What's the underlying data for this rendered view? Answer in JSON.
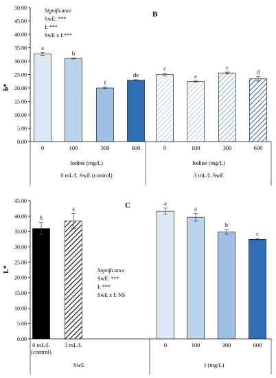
{
  "charts": [
    {
      "type": "bar",
      "panel": "B",
      "ylabel": "b*",
      "ylim": [
        0,
        50
      ],
      "yticks": [
        "0.00",
        "5.00",
        "10.00",
        "15.00",
        "20.00",
        "25.00",
        "30.00",
        "35.00",
        "40.00",
        "45.00",
        "50.00"
      ],
      "significance": {
        "title": "Significance",
        "lines": [
          "SwE: ***",
          "I: ***",
          "SwE x I:***"
        ]
      },
      "categories": [
        "0",
        "100",
        "300",
        "600",
        "0",
        "100",
        "300",
        "600"
      ],
      "values": [
        32.7,
        31.0,
        20.0,
        22.9,
        25.0,
        22.4,
        25.6,
        23.4
      ],
      "errors": [
        0.5,
        0.2,
        0.3,
        0.2,
        0.5,
        0.2,
        0.3,
        0.8
      ],
      "letters": [
        "a",
        "b",
        "f",
        "de",
        "c",
        "e",
        "c",
        "d"
      ],
      "fills": [
        "#dce8f6",
        "#bcd3ee",
        "#9fc0e6",
        "#2f6db5",
        "hatch-light",
        "hatch-light",
        "hatch-mid",
        "hatch-dark"
      ],
      "groups": [
        {
          "sub": "Iodine (mg/L)",
          "label": "0 mL/L SwE (control)"
        },
        {
          "sub": "Iodine (mg/L)",
          "label": "3 mL/L SwE"
        }
      ]
    },
    {
      "type": "bar",
      "panel": "C",
      "ylabel": "L*",
      "ylim": [
        0,
        45
      ],
      "yticks": [
        "0.00",
        "5.00",
        "10.00",
        "15.00",
        "20.00",
        "25.00",
        "30.00",
        "35.00",
        "40.00",
        "45.00"
      ],
      "significance": {
        "title": "Significance",
        "lines": [
          "SwE: ***",
          "I: ***",
          "SwE x I: NS"
        ]
      },
      "categories": [
        "0 mL/L\n(control)",
        "3 mL/L",
        "0",
        "100",
        "300",
        "600"
      ],
      "values": [
        35.9,
        38.4,
        41.6,
        39.6,
        34.8,
        32.4
      ],
      "errors": [
        2.0,
        2.5,
        1.0,
        1.3,
        0.8,
        0.3
      ],
      "letters": [
        "b",
        "a",
        "a",
        "a",
        "b",
        "c"
      ],
      "fills": [
        "#000000",
        "hatch-black",
        "#dce8f6",
        "#bcd3ee",
        "#9fc0e6",
        "#2f6db5"
      ],
      "groups": [
        {
          "label": "SwE"
        },
        {
          "label": "I (mg/L)"
        }
      ]
    }
  ]
}
